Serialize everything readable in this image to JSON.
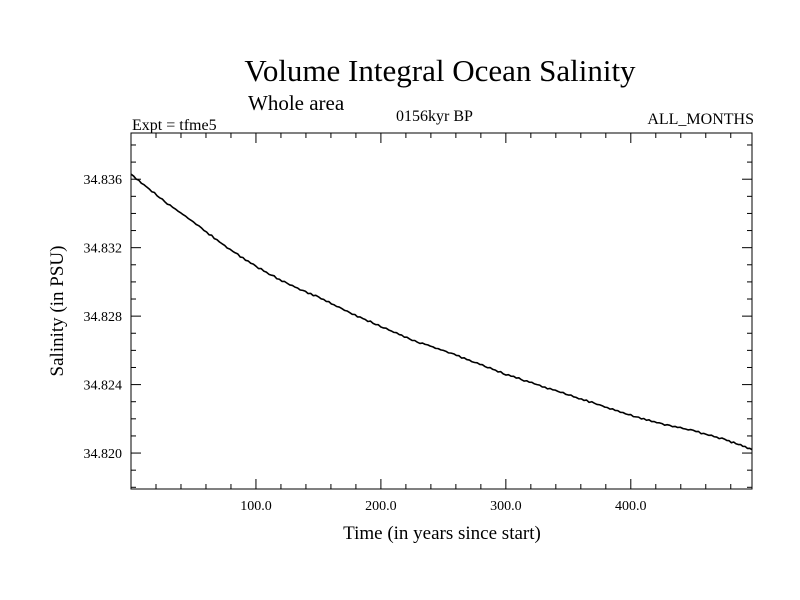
{
  "header": {
    "title": "Volume Integral Ocean Salinity",
    "subtitle": "Whole area",
    "experiment": "Expt = tfme5",
    "period": "0156kyr BP",
    "months": "ALL_MONTHS"
  },
  "chart_data": {
    "type": "line",
    "title": "Volume Integral Ocean Salinity",
    "subtitle": "Whole area",
    "xlabel": "Time (in years since start)",
    "ylabel": "Salinity (in PSU)",
    "xlim": [
      0,
      497
    ],
    "ylim": [
      34.8179,
      34.8387
    ],
    "x_ticks": [
      100,
      200,
      300,
      400
    ],
    "x_tick_labels": [
      "100.0",
      "200.0",
      "300.0",
      "400.0"
    ],
    "y_ticks": [
      34.82,
      34.824,
      34.828,
      34.832,
      34.836
    ],
    "y_tick_labels": [
      "34.820",
      "34.824",
      "34.828",
      "34.832",
      "34.836"
    ],
    "grid": false,
    "color": "#000000",
    "series": [
      {
        "x": [
          0,
          25,
          50,
          75,
          100,
          125,
          150,
          175,
          200,
          225,
          250,
          275,
          300,
          325,
          350,
          375,
          400,
          425,
          450,
          475,
          497
        ],
        "values": [
          34.8363,
          34.8348,
          34.8335,
          34.8321,
          34.8309,
          34.8299,
          34.8291,
          34.8282,
          34.8274,
          34.8266,
          34.826,
          34.8253,
          34.8246,
          34.824,
          34.8234,
          34.8228,
          34.8222,
          34.8217,
          34.8213,
          34.8208,
          34.8202
        ]
      }
    ]
  }
}
